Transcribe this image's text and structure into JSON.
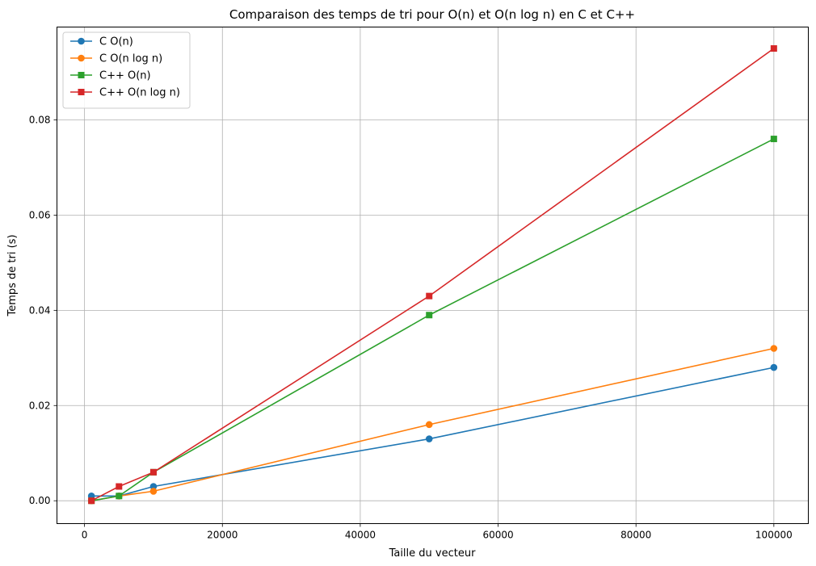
{
  "chart_data": {
    "type": "line",
    "title": "Comparaison des temps de tri pour O(n) et O(n log n) en C et C++",
    "xlabel": "Taille du vecteur",
    "ylabel": "Temps de tri (s)",
    "x": [
      1000,
      5000,
      10000,
      50000,
      100000
    ],
    "xlim": [
      -4000,
      105000
    ],
    "ylim": [
      -0.0048,
      0.0995
    ],
    "xticks": [
      0,
      20000,
      40000,
      60000,
      80000,
      100000
    ],
    "yticks": [
      0.0,
      0.02,
      0.04,
      0.06,
      0.08
    ],
    "xtick_labels": [
      "0",
      "20000",
      "40000",
      "60000",
      "80000",
      "100000"
    ],
    "ytick_labels": [
      "0.00",
      "0.02",
      "0.04",
      "0.06",
      "0.08"
    ],
    "grid": true,
    "legend_position": "top-left",
    "series": [
      {
        "name": "C O(n)",
        "color": "#1f77b4",
        "marker": "circle",
        "values": [
          0.001,
          0.001,
          0.003,
          0.013,
          0.028
        ]
      },
      {
        "name": "C O(n log n)",
        "color": "#ff7f0e",
        "marker": "circle",
        "values": [
          0.0,
          0.001,
          0.002,
          0.016,
          0.032
        ]
      },
      {
        "name": "C++ O(n)",
        "color": "#2ca02c",
        "marker": "square",
        "values": [
          0.0,
          0.001,
          0.006,
          0.039,
          0.076
        ]
      },
      {
        "name": "C++ O(n log n)",
        "color": "#d62728",
        "marker": "square",
        "values": [
          0.0,
          0.003,
          0.006,
          0.043,
          0.095
        ]
      }
    ]
  }
}
